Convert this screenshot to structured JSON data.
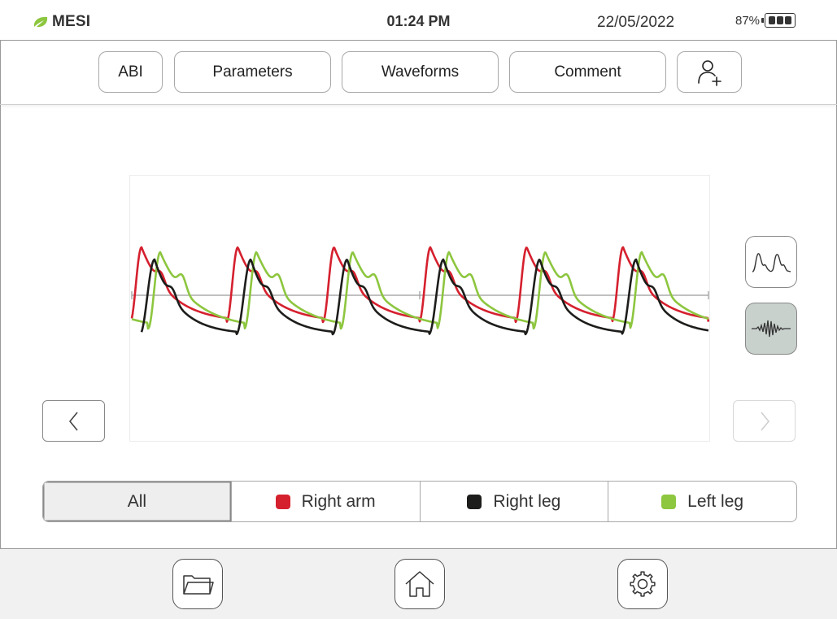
{
  "status": {
    "brand": "MESI",
    "time": "01:24 PM",
    "date": "22/05/2022",
    "battery": "87%"
  },
  "tabs": [
    {
      "label": "ABI",
      "active": false
    },
    {
      "label": "Parameters",
      "active": false
    },
    {
      "label": "Waveforms",
      "active": true
    },
    {
      "label": "Comment",
      "active": false
    }
  ],
  "filters": [
    {
      "label": "All",
      "active": true
    },
    {
      "label": "Right arm",
      "color": "#d5202e"
    },
    {
      "label": "Right leg",
      "color": "#1d1d1b"
    },
    {
      "label": "Left leg",
      "color": "#8dc63f"
    }
  ],
  "view_modes": [
    "pulse-wave-icon",
    "oscillation-icon"
  ],
  "chart_data": {
    "type": "line",
    "title": "",
    "xlabel": "",
    "ylabel": "",
    "pulses_shown": 6,
    "series": [
      {
        "label": "Right arm",
        "color": "#d5202e"
      },
      {
        "label": "Right leg",
        "color": "#1d1d1b"
      },
      {
        "label": "Left leg",
        "color": "#8dc63f"
      }
    ]
  },
  "bottom_toolbar": [
    "folder-icon",
    "home-icon",
    "settings-icon"
  ],
  "colors": {
    "accent_active": "#c9d1cc",
    "brand_green": "#8dc63f"
  }
}
